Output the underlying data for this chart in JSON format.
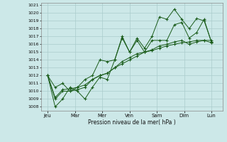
{
  "title": "",
  "xlabel": "Pression niveau de la mer( hPa )",
  "ylim": [
    1007.5,
    1021.3
  ],
  "yticks": [
    1008,
    1009,
    1010,
    1011,
    1012,
    1013,
    1014,
    1015,
    1016,
    1017,
    1018,
    1019,
    1020,
    1021
  ],
  "day_labels": [
    "Jeu",
    "Mar",
    "Mer",
    "Ven",
    "Sam",
    "Dim",
    "Lun"
  ],
  "day_positions": [
    0,
    2,
    4,
    6,
    8,
    10,
    12
  ],
  "background_color": "#cce8e8",
  "line_color": "#1a5c1a",
  "grid_color": "#aacccc",
  "series1": [
    1012.0,
    1008.0,
    1009.0,
    1010.5,
    1010.0,
    1009.0,
    1010.5,
    1011.8,
    1011.5,
    1014.0,
    1017.0,
    1015.0,
    1016.8,
    1015.5,
    1017.0,
    1019.5,
    1019.2,
    1020.5,
    1019.2,
    1018.0,
    1019.3,
    1019.0,
    1016.3
  ],
  "series2": [
    1012.0,
    1010.5,
    1011.0,
    1010.0,
    1010.5,
    1011.5,
    1012.0,
    1014.0,
    1013.8,
    1014.0,
    1016.8,
    1015.0,
    1016.5,
    1015.0,
    1016.5,
    1016.5,
    1016.5,
    1018.5,
    1018.8,
    1016.8,
    1017.5,
    1019.2,
    1016.2
  ],
  "series3": [
    1012.0,
    1009.0,
    1010.0,
    1010.0,
    1010.2,
    1010.5,
    1011.5,
    1012.0,
    1012.3,
    1013.0,
    1013.5,
    1014.0,
    1014.5,
    1015.0,
    1015.2,
    1015.5,
    1015.8,
    1016.0,
    1016.2,
    1016.3,
    1016.5,
    1016.5,
    1016.5
  ],
  "series4": [
    1012.0,
    1009.2,
    1010.2,
    1010.3,
    1010.5,
    1010.8,
    1011.5,
    1012.0,
    1012.3,
    1013.0,
    1013.8,
    1014.3,
    1014.8,
    1015.0,
    1015.3,
    1015.8,
    1016.0,
    1016.3,
    1016.5,
    1016.0,
    1016.3,
    1016.5,
    1016.2
  ],
  "n_points": 23,
  "figwidth": 3.2,
  "figheight": 2.0,
  "dpi": 100
}
